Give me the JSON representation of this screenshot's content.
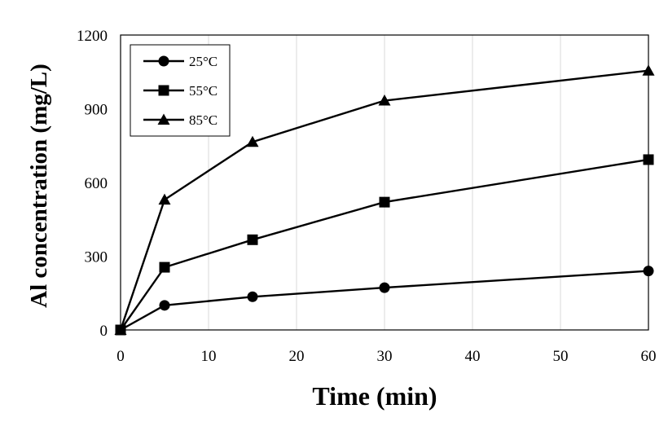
{
  "chart_data": {
    "type": "line",
    "title": "",
    "xlabel": "Time (min)",
    "ylabel": "Al concentration (mg/L)",
    "xlim": [
      0,
      60
    ],
    "ylim": [
      0,
      1200
    ],
    "xticks": [
      0,
      10,
      20,
      30,
      40,
      50,
      60
    ],
    "yticks": [
      0,
      300,
      600,
      900,
      1200
    ],
    "grid": "vertical",
    "legend_position": "top-left",
    "x": [
      0,
      5,
      15,
      30,
      60
    ],
    "series": [
      {
        "name": "25°C",
        "marker": "circle",
        "values": [
          0,
          100,
          135,
          172,
          240
        ]
      },
      {
        "name": "55°C",
        "marker": "square",
        "values": [
          0,
          255,
          367,
          520,
          693
        ]
      },
      {
        "name": "85°C",
        "marker": "triangle",
        "values": [
          0,
          530,
          765,
          933,
          1055
        ]
      }
    ]
  }
}
